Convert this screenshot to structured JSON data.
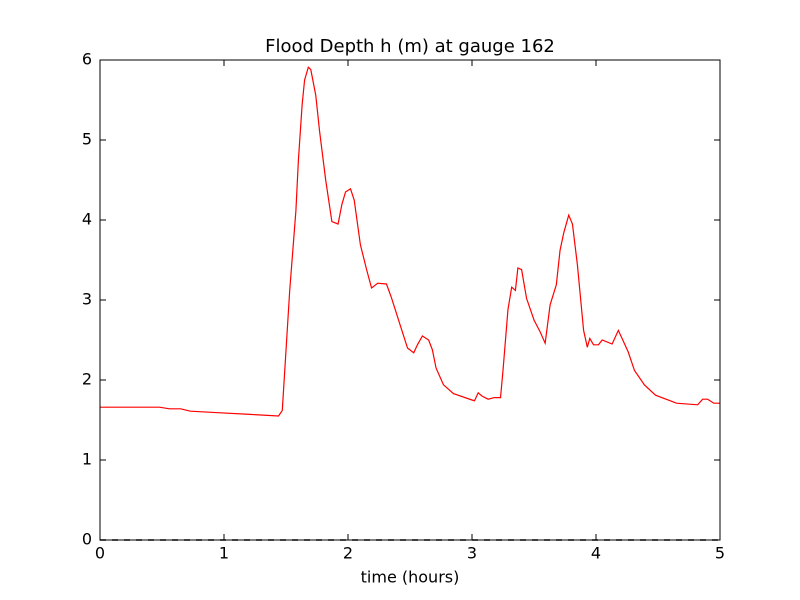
{
  "chart_data": {
    "type": "line",
    "title": "Flood Depth h (m) at gauge 162",
    "xlabel": "time (hours)",
    "xlim": [
      0,
      5
    ],
    "ylim": [
      0,
      6
    ],
    "xticks": [
      0,
      1,
      2,
      3,
      4,
      5
    ],
    "yticks": [
      0,
      1,
      2,
      3,
      4,
      5,
      6
    ],
    "series": [
      {
        "color": "#ff0000",
        "linestyle": "solid",
        "x": [
          0,
          0.48,
          0.56,
          0.65,
          0.73,
          0.97,
          1.21,
          1.44,
          1.47,
          1.49,
          1.53,
          1.58,
          1.6,
          1.63,
          1.65,
          1.68,
          1.7,
          1.74,
          1.77,
          1.82,
          1.87,
          1.92,
          1.95,
          1.98,
          2.02,
          2.05,
          2.1,
          2.15,
          2.19,
          2.24,
          2.31,
          2.35,
          2.42,
          2.48,
          2.53,
          2.56,
          2.6,
          2.65,
          2.68,
          2.71,
          2.77,
          2.85,
          3.0,
          3.02,
          3.05,
          3.08,
          3.13,
          3.18,
          3.23,
          3.25,
          3.29,
          3.32,
          3.35,
          3.37,
          3.4,
          3.44,
          3.5,
          3.55,
          3.59,
          3.63,
          3.68,
          3.71,
          3.74,
          3.78,
          3.81,
          3.85,
          3.9,
          3.93,
          3.95,
          3.98,
          4.02,
          4.05,
          4.13,
          4.18,
          4.21,
          4.26,
          4.31,
          4.39,
          4.48,
          4.65,
          4.82,
          4.86,
          4.9,
          4.95,
          5.0
        ],
        "values": [
          1.66,
          1.66,
          1.64,
          1.64,
          1.61,
          1.59,
          1.57,
          1.55,
          1.62,
          2.12,
          3.12,
          4.12,
          4.75,
          5.44,
          5.75,
          5.91,
          5.88,
          5.56,
          5.12,
          4.5,
          3.98,
          3.95,
          4.19,
          4.35,
          4.39,
          4.25,
          3.69,
          3.38,
          3.15,
          3.21,
          3.2,
          3.03,
          2.69,
          2.4,
          2.34,
          2.44,
          2.55,
          2.5,
          2.38,
          2.15,
          1.94,
          1.83,
          1.75,
          1.74,
          1.84,
          1.8,
          1.76,
          1.78,
          1.78,
          2.12,
          2.88,
          3.16,
          3.12,
          3.4,
          3.38,
          3.02,
          2.75,
          2.6,
          2.46,
          2.94,
          3.19,
          3.62,
          3.84,
          4.06,
          3.95,
          3.44,
          2.62,
          2.41,
          2.52,
          2.44,
          2.44,
          2.5,
          2.45,
          2.62,
          2.52,
          2.35,
          2.12,
          1.94,
          1.81,
          1.71,
          1.69,
          1.76,
          1.76,
          1.71,
          1.71
        ]
      },
      {
        "color": "#000000",
        "linestyle": "dashed",
        "x": [
          0,
          5
        ],
        "values": [
          0,
          0
        ]
      }
    ]
  }
}
